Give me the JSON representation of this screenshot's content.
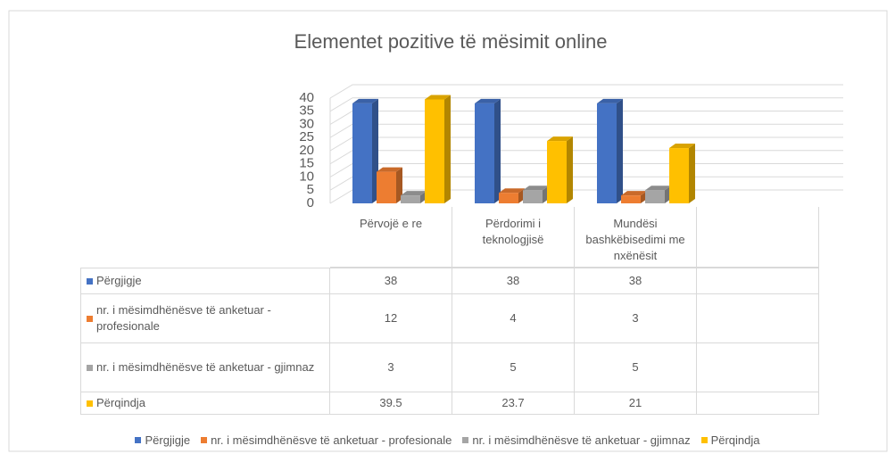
{
  "chart_data": {
    "type": "bar3d",
    "title": "Elementet pozitive të mësimit online",
    "categories": [
      "Përvojë e re",
      "Përdorimi i teknologjisë",
      "Mundësi bashkëbisedimi me nxënësit",
      null
    ],
    "series": [
      {
        "name": "Përgjigje",
        "color": "#4472c4",
        "values": [
          38,
          38,
          38,
          null
        ]
      },
      {
        "name": "nr. i mësimdhënësve të anketuar - profesionale",
        "color": "#ed7d31",
        "values": [
          12,
          4,
          3,
          null
        ]
      },
      {
        "name": "nr. i mësimdhënësve të anketuar - gjimnaz",
        "color": "#a5a5a5",
        "values": [
          3,
          5,
          5,
          null
        ]
      },
      {
        "name": "Përqindja",
        "color": "#ffc000",
        "values": [
          39.5,
          23.7,
          21,
          null
        ]
      }
    ],
    "ylim": [
      0,
      40
    ],
    "yticks": [
      0,
      5,
      10,
      15,
      20,
      25,
      30,
      35,
      40
    ],
    "grid": true,
    "legend": "bottom"
  }
}
